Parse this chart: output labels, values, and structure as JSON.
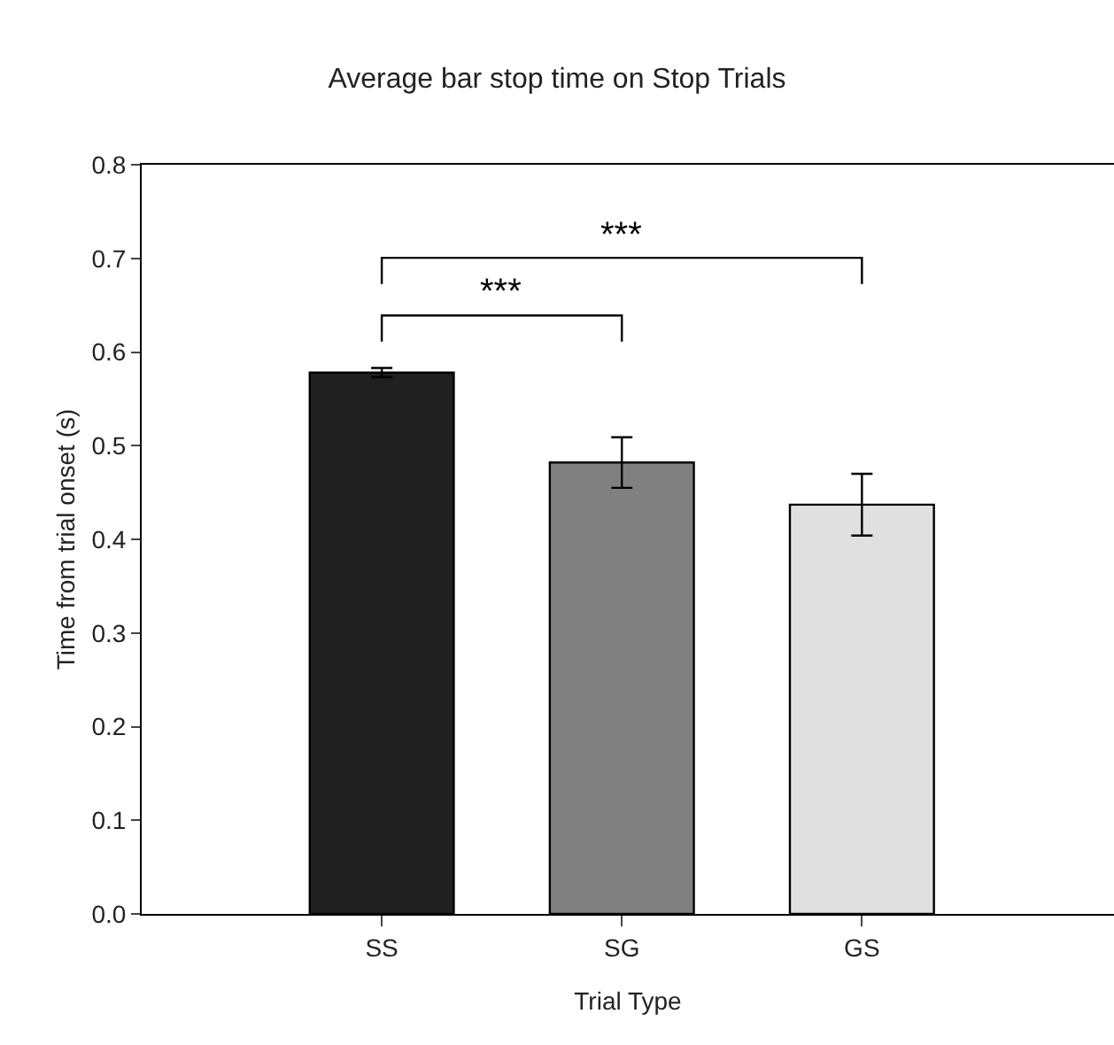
{
  "chart_data": {
    "type": "bar",
    "title": "Average bar stop time on Stop Trials",
    "xlabel": "Trial Type",
    "ylabel": "Time from trial onset (s)",
    "categories": [
      "SS",
      "SG",
      "GS"
    ],
    "values": [
      0.578,
      0.482,
      0.437
    ],
    "colors": [
      "#202020",
      "#808080",
      "#e0e0e0"
    ],
    "errors": [
      0.005,
      0.027,
      0.033
    ],
    "ylim": [
      0,
      0.8
    ],
    "yticks": [
      {
        "value": 0,
        "label": "0.0"
      },
      0.1,
      0.2,
      0.3,
      0.4,
      0.5,
      0.6,
      0.7,
      0.8
    ],
    "grid": false,
    "annotations": [
      "***",
      "***"
    ]
  }
}
